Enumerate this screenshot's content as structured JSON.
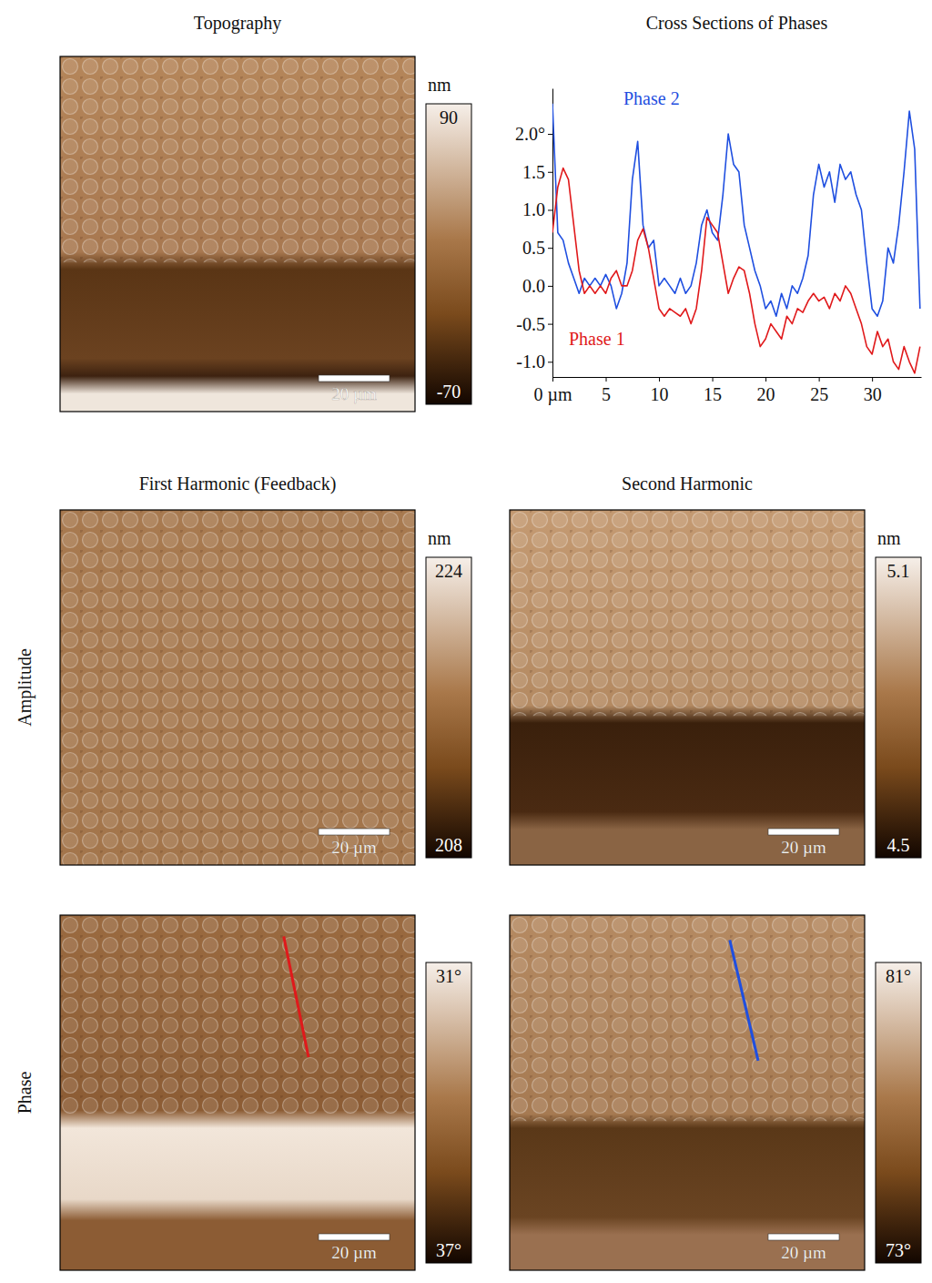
{
  "figure": {
    "column_titles": [
      "First Harmonic (Feedback)",
      "Second Harmonic"
    ],
    "row_labels": [
      "Amplitude",
      "Phase"
    ]
  },
  "chart_data": [
    {
      "type": "image",
      "title": "Topography",
      "xlim": [
        0,
        100
      ],
      "ylim": [
        0,
        100
      ],
      "scale_bar": {
        "value": 20,
        "label": "20 µm"
      },
      "colorbar": {
        "label": "nm",
        "range": [
          -70,
          90
        ],
        "ticks": [
          -70,
          90
        ]
      }
    },
    {
      "type": "line",
      "title": "Cross Sections of Phases",
      "x": [
        0,
        0.5,
        1,
        1.5,
        2,
        2.5,
        3,
        3.5,
        4,
        4.5,
        5,
        5.5,
        6,
        6.5,
        7,
        7.5,
        8,
        8.5,
        9,
        9.5,
        10,
        10.5,
        11,
        11.5,
        12,
        12.5,
        13,
        13.5,
        14,
        14.5,
        15,
        15.5,
        16,
        16.5,
        17,
        17.5,
        18,
        18.5,
        19,
        19.5,
        20,
        20.5,
        21,
        21.5,
        22,
        22.5,
        23,
        23.5,
        24,
        24.5,
        25,
        25.5,
        26,
        26.5,
        27,
        27.5,
        28,
        28.5,
        29,
        29.5,
        30,
        30.5,
        31,
        31.5,
        32,
        32.5,
        33,
        33.5,
        34,
        34.5
      ],
      "xlim": [
        0,
        34.6
      ],
      "xticks": [
        {
          "value": 0,
          "label": "0 µm"
        },
        5,
        10,
        15,
        20,
        25,
        30
      ],
      "ylim": [
        -1.2,
        2.6
      ],
      "yticks": [
        {
          "value": -1.0,
          "label": "-1.0"
        },
        {
          "value": -0.5,
          "label": "-0.5"
        },
        {
          "value": 0.0,
          "label": "0.0"
        },
        {
          "value": 0.5,
          "label": "0.5"
        },
        {
          "value": 1.0,
          "label": "1.0"
        },
        {
          "value": 1.5,
          "label": "1.5"
        },
        {
          "value": 2.0,
          "label": "2.0°"
        }
      ],
      "series": [
        {
          "name": "Phase 2",
          "color": "#1f4fe0",
          "values": [
            2.4,
            0.7,
            0.6,
            0.3,
            0.1,
            -0.1,
            0.1,
            0.0,
            0.1,
            0.0,
            0.15,
            0.0,
            -0.3,
            -0.1,
            0.3,
            1.4,
            1.9,
            0.8,
            0.5,
            0.6,
            0.0,
            0.1,
            0.0,
            -0.1,
            0.1,
            -0.1,
            0.0,
            0.3,
            0.8,
            1.0,
            0.7,
            0.6,
            1.2,
            2.0,
            1.6,
            1.5,
            0.8,
            0.5,
            0.2,
            0.0,
            -0.3,
            -0.2,
            -0.4,
            -0.1,
            -0.3,
            0.0,
            -0.1,
            0.1,
            0.4,
            1.2,
            1.6,
            1.3,
            1.5,
            1.1,
            1.6,
            1.4,
            1.5,
            1.2,
            1.0,
            0.3,
            -0.3,
            -0.4,
            -0.2,
            0.5,
            0.3,
            0.8,
            1.5,
            2.3,
            1.8,
            -0.3
          ]
        },
        {
          "name": "Phase 1",
          "color": "#e0191b",
          "values": [
            0.7,
            1.3,
            1.55,
            1.4,
            0.8,
            0.2,
            -0.1,
            0.0,
            -0.1,
            0.0,
            -0.1,
            0.1,
            0.2,
            0.0,
            0.0,
            0.2,
            0.6,
            0.75,
            0.5,
            0.1,
            -0.3,
            -0.4,
            -0.3,
            -0.35,
            -0.4,
            -0.3,
            -0.5,
            -0.3,
            0.2,
            0.9,
            0.8,
            0.7,
            0.3,
            -0.1,
            0.1,
            0.25,
            0.2,
            -0.1,
            -0.5,
            -0.8,
            -0.7,
            -0.5,
            -0.6,
            -0.7,
            -0.4,
            -0.5,
            -0.3,
            -0.35,
            -0.2,
            -0.1,
            -0.2,
            -0.15,
            -0.3,
            -0.1,
            -0.2,
            0.0,
            -0.1,
            -0.3,
            -0.5,
            -0.8,
            -0.9,
            -0.6,
            -0.8,
            -0.7,
            -1.0,
            -1.1,
            -0.8,
            -1.0,
            -1.15,
            -0.8
          ]
        }
      ]
    },
    {
      "type": "image",
      "xlim": [
        0,
        100
      ],
      "ylim": [
        0,
        100
      ],
      "scale_bar": {
        "value": 20,
        "label": "20 µm"
      },
      "colorbar": {
        "label": "nm",
        "range": [
          208,
          224
        ],
        "ticks": [
          208,
          224
        ]
      }
    },
    {
      "type": "image",
      "xlim": [
        0,
        100
      ],
      "ylim": [
        0,
        100
      ],
      "scale_bar": {
        "value": 20,
        "label": "20 µm"
      },
      "colorbar": {
        "label": "nm",
        "range": [
          4.5,
          5.1
        ],
        "ticks": [
          4.5,
          5.1
        ]
      }
    },
    {
      "type": "image",
      "xlim": [
        0,
        100
      ],
      "ylim": [
        0,
        100
      ],
      "color": "#e0191b",
      "profile": {
        "start": [
          63,
          6
        ],
        "end": [
          70,
          40
        ]
      },
      "scale_bar": {
        "value": 20,
        "label": "20 µm"
      },
      "colorbar": {
        "range": [
          37,
          31
        ],
        "ticks": [
          {
            "value": 37,
            "label": "37°"
          },
          {
            "value": 31,
            "label": "31°"
          }
        ]
      }
    },
    {
      "type": "image",
      "xlim": [
        0,
        100
      ],
      "ylim": [
        0,
        100
      ],
      "color": "#1f4fe0",
      "profile": {
        "start": [
          62,
          7
        ],
        "end": [
          70,
          41
        ]
      },
      "scale_bar": {
        "value": 20,
        "label": "20 µm"
      },
      "colorbar": {
        "range": [
          73,
          81
        ],
        "ticks": [
          {
            "value": 73,
            "label": "73°"
          },
          {
            "value": 81,
            "label": "81°"
          }
        ]
      }
    }
  ]
}
